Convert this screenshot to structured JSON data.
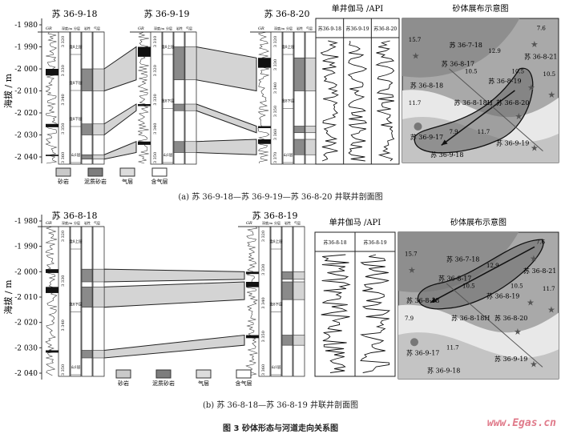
{
  "figure_title": "图 3   砂体形态与河道走向关系图",
  "watermark": "www.Egas.cn",
  "y_axis_label": "海拔 / m",
  "column_headers": {
    "gr": "GR",
    "depth": "深度/m",
    "layer": "分层",
    "lith": "岩性",
    "gas": "气层"
  },
  "legend": [
    {
      "label": "砂岩",
      "color": "#c9c9c9"
    },
    {
      "label": "泥质砂岩",
      "color": "#7d7d7d"
    },
    {
      "label": "气层",
      "color": "#dcdcdc"
    },
    {
      "label": "含气层",
      "color": "#ffffff"
    }
  ],
  "panels": [
    {
      "caption": "(a) 苏 36-9-18—苏 36-9-19—苏 36-8-20 井联井剖面图",
      "y_ticks": [
        "-1 980",
        "-1 990",
        "-2 000",
        "-2 010",
        "-2 020",
        "-2 030",
        "-2 040"
      ],
      "y_range": [
        -1980,
        -2040
      ],
      "wells": [
        {
          "name": "苏 36-9-18",
          "depth_labels": [
            "3 320",
            "3 330",
            "3 340",
            "3 350",
            "3 360"
          ],
          "layers": [
            "盒8上层",
            "盒8下层",
            "盒8下层",
            "山1层"
          ]
        },
        {
          "name": "苏 36-9-19",
          "depth_labels": [
            "3 310",
            "3 320",
            "3 330",
            "3 340",
            "3 350"
          ],
          "layers": [
            "盒8上层",
            "盒8下层",
            "山1层"
          ]
        },
        {
          "name": "苏 36-8-20",
          "depth_labels": [
            "3 320",
            "3 330",
            "3 340",
            "3 350",
            "3 360",
            "3 370"
          ],
          "layers": [
            "盒8上层",
            "盒8下层",
            "山1层"
          ]
        }
      ],
      "sand_bodies": [
        {
          "tops": [
            -2000,
            -1990,
            -1995
          ],
          "bases": [
            -2010,
            -2005,
            -2010
          ]
        },
        {
          "tops": [
            -2025,
            -2016,
            -2026
          ],
          "bases": [
            -2030,
            -2019,
            -2029
          ]
        },
        {
          "tops": [
            -2039,
            -2033,
            -2032
          ],
          "bases": [
            -2041,
            -2038,
            -2039
          ]
        }
      ],
      "gamma": {
        "title": "单井伽马 /API",
        "wells": [
          "苏36-9-18",
          "苏36-9-19",
          "苏36-8-20"
        ]
      },
      "map": {
        "title": "砂体展布示意图",
        "wells": [
          "苏 36-7-18",
          "苏 36-8-17",
          "苏 36-8-21",
          "苏 36-8-18",
          "苏 36-8-19",
          "苏 36-8-18H",
          "苏 36-8-20",
          "苏 36-9-17",
          "苏 36-9-18",
          "苏 36-9-19"
        ],
        "contour_values": [
          "15.7",
          "12.9",
          "10.5",
          "7.6",
          "10.5",
          "10.5",
          "11.7",
          "7.9",
          "11.7"
        ]
      }
    },
    {
      "caption": "(b)  苏 36-8-18—苏 36-8-19 井联井剖面图",
      "y_ticks": [
        "-1 980",
        "-1 990",
        "-2 000",
        "-2 010",
        "-2 020",
        "-2 030",
        "-2 040"
      ],
      "y_range": [
        -1980,
        -2040
      ],
      "wells": [
        {
          "name": "苏 36-8-18",
          "depth_labels": [
            "3 320",
            "3 330",
            "3 340",
            "3 350"
          ],
          "layers": [
            "盒8上层",
            "盒8下层",
            "山1层"
          ]
        },
        {
          "name": "苏 36-8-19",
          "depth_labels": [
            "3 320",
            "3 330",
            "3 340",
            "3 350",
            "3 360"
          ],
          "layers": [
            "盒8上层",
            "盒8下层",
            "山1层"
          ]
        }
      ],
      "sand_bodies": [
        {
          "tops": [
            -1999,
            -2000
          ],
          "bases": [
            -2004,
            -2003
          ]
        },
        {
          "tops": [
            -2006,
            -2004
          ],
          "bases": [
            -2014,
            -2011
          ]
        },
        {
          "tops": [
            -2031,
            -2025
          ],
          "bases": [
            -2034,
            -2029
          ]
        }
      ],
      "gamma": {
        "title": "单井伽马 /API",
        "wells": [
          "苏36-8-18",
          "苏36-8-19"
        ]
      },
      "map": {
        "title": "砂体展布示意图",
        "wells": [
          "苏 36-7-18",
          "苏 36-8-17",
          "苏 36-8-21",
          "苏 36-8-18",
          "苏 36-8-19",
          "苏 36-8-18H",
          "苏 36-8-20",
          "苏 36-9-17",
          "苏 36-9-18",
          "苏 36-9-19"
        ],
        "contour_values": [
          "15.7",
          "12.9",
          "10.5",
          "7.6",
          "10.5",
          "11.7",
          "7.9",
          "11.7"
        ]
      }
    }
  ]
}
